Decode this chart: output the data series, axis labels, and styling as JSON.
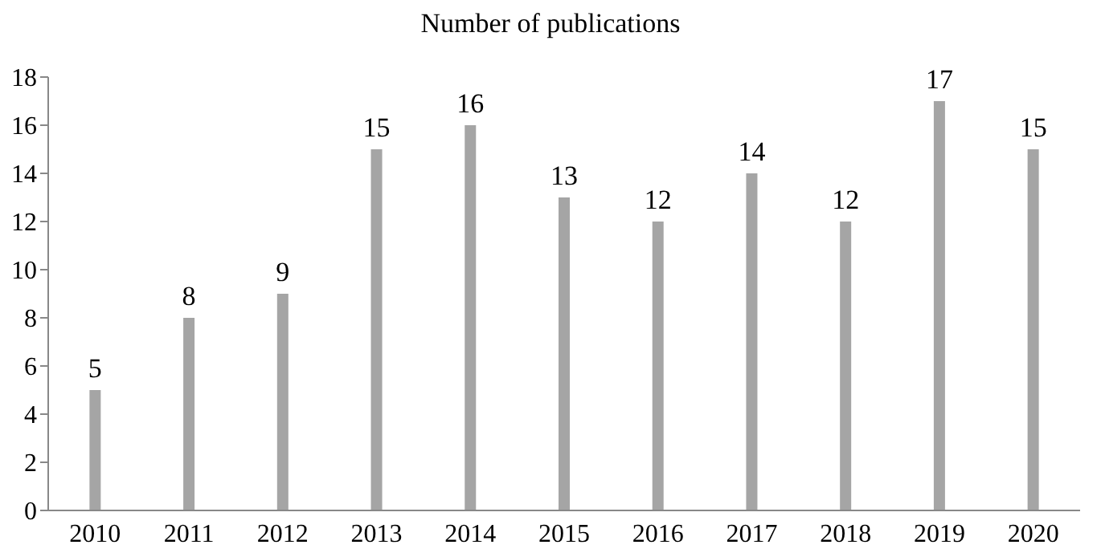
{
  "chart_data": {
    "type": "bar",
    "title": "Number of publications",
    "categories": [
      "2010",
      "2011",
      "2012",
      "2013",
      "2014",
      "2015",
      "2016",
      "2017",
      "2018",
      "2019",
      "2020"
    ],
    "values": [
      5,
      8,
      9,
      15,
      16,
      13,
      12,
      14,
      12,
      17,
      15
    ],
    "color": "#a5a5a5",
    "ylim": [
      0,
      18
    ],
    "yticks": [
      0,
      2,
      4,
      6,
      8,
      10,
      12,
      14,
      16,
      18
    ],
    "data_labels": true,
    "grid": false,
    "legend": false
  }
}
